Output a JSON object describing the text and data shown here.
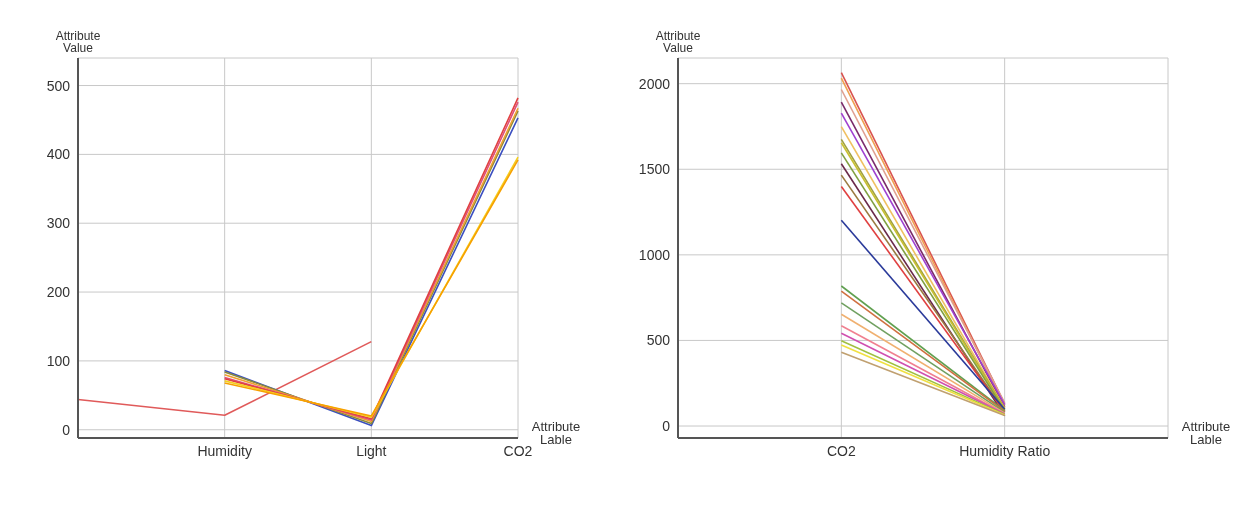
{
  "chart_data": [
    {
      "type": "line",
      "xlabel": "Attribute Lable",
      "ylabel": "Attribute Value",
      "categories": [
        null,
        "Humidity",
        "Light",
        "CO2"
      ],
      "ylim": [
        -12,
        540
      ],
      "yticks": [
        0,
        100,
        200,
        300,
        400,
        500
      ],
      "grid": true,
      "marker": "none",
      "line_style": "solid",
      "series": [
        {
          "color": "#e05a5a",
          "values": [
            44,
            21,
            128,
            null
          ]
        },
        {
          "color": "#3b4fc0",
          "values": [
            null,
            86,
            6,
            453
          ]
        },
        {
          "color": "#8a8a3a",
          "values": [
            null,
            84,
            9,
            463
          ]
        },
        {
          "color": "#f0a030",
          "values": [
            null,
            80,
            12,
            467
          ]
        },
        {
          "color": "#e0507a",
          "values": [
            null,
            76,
            14,
            476
          ]
        },
        {
          "color": "#e04040",
          "values": [
            null,
            74,
            16,
            482
          ]
        },
        {
          "color": "#f5d020",
          "values": [
            null,
            71,
            18,
            396
          ]
        },
        {
          "color": "#f7a000",
          "values": [
            null,
            68,
            20,
            392
          ]
        }
      ]
    },
    {
      "type": "line",
      "xlabel": "Attribute Lable",
      "ylabel": "Attribute Value",
      "categories": [
        null,
        "CO2",
        "Humidity Ratio",
        null
      ],
      "ylim": [
        -70,
        2150
      ],
      "yticks": [
        0,
        500,
        1000,
        1500,
        2000
      ],
      "grid": true,
      "marker": "none",
      "line_style": "solid",
      "series": [
        {
          "color": "#d9534f",
          "values": [
            null,
            2064,
            130,
            null
          ]
        },
        {
          "color": "#f0a050",
          "values": [
            null,
            2032,
            120,
            null
          ]
        },
        {
          "color": "#e0a090",
          "values": [
            null,
            1966,
            135,
            null
          ]
        },
        {
          "color": "#7a2a6a",
          "values": [
            null,
            1892,
            110,
            null
          ]
        },
        {
          "color": "#a040d0",
          "values": [
            null,
            1828,
            125,
            null
          ]
        },
        {
          "color": "#f0c060",
          "values": [
            null,
            1749,
            105,
            null
          ]
        },
        {
          "color": "#a0a040",
          "values": [
            null,
            1675,
            100,
            null
          ]
        },
        {
          "color": "#c8c030",
          "values": [
            null,
            1655,
            95,
            null
          ]
        },
        {
          "color": "#80a040",
          "values": [
            null,
            1596,
            90,
            null
          ]
        },
        {
          "color": "#6a2a4a",
          "values": [
            null,
            1532,
            60,
            null
          ]
        },
        {
          "color": "#9a7a40",
          "values": [
            null,
            1466,
            85,
            null
          ]
        },
        {
          "color": "#e04040",
          "values": [
            null,
            1399,
            80,
            null
          ]
        },
        {
          "color": "#2a3a9a",
          "values": [
            null,
            1202,
            98,
            null
          ]
        },
        {
          "color": "#60a050",
          "values": [
            null,
            818,
            90,
            null
          ]
        },
        {
          "color": "#d07040",
          "values": [
            null,
            788,
            85,
            null
          ]
        },
        {
          "color": "#70a060",
          "values": [
            null,
            719,
            80,
            null
          ]
        },
        {
          "color": "#f0b070",
          "values": [
            null,
            653,
            75,
            null
          ]
        },
        {
          "color": "#f08090",
          "values": [
            null,
            586,
            72,
            null
          ]
        },
        {
          "color": "#d050b0",
          "values": [
            null,
            542,
            70,
            null
          ]
        },
        {
          "color": "#a0c040",
          "values": [
            null,
            498,
            68,
            null
          ]
        },
        {
          "color": "#f0e040",
          "values": [
            null,
            473,
            65,
            null
          ]
        },
        {
          "color": "#c0a070",
          "values": [
            null,
            431,
            62,
            null
          ]
        }
      ]
    }
  ]
}
